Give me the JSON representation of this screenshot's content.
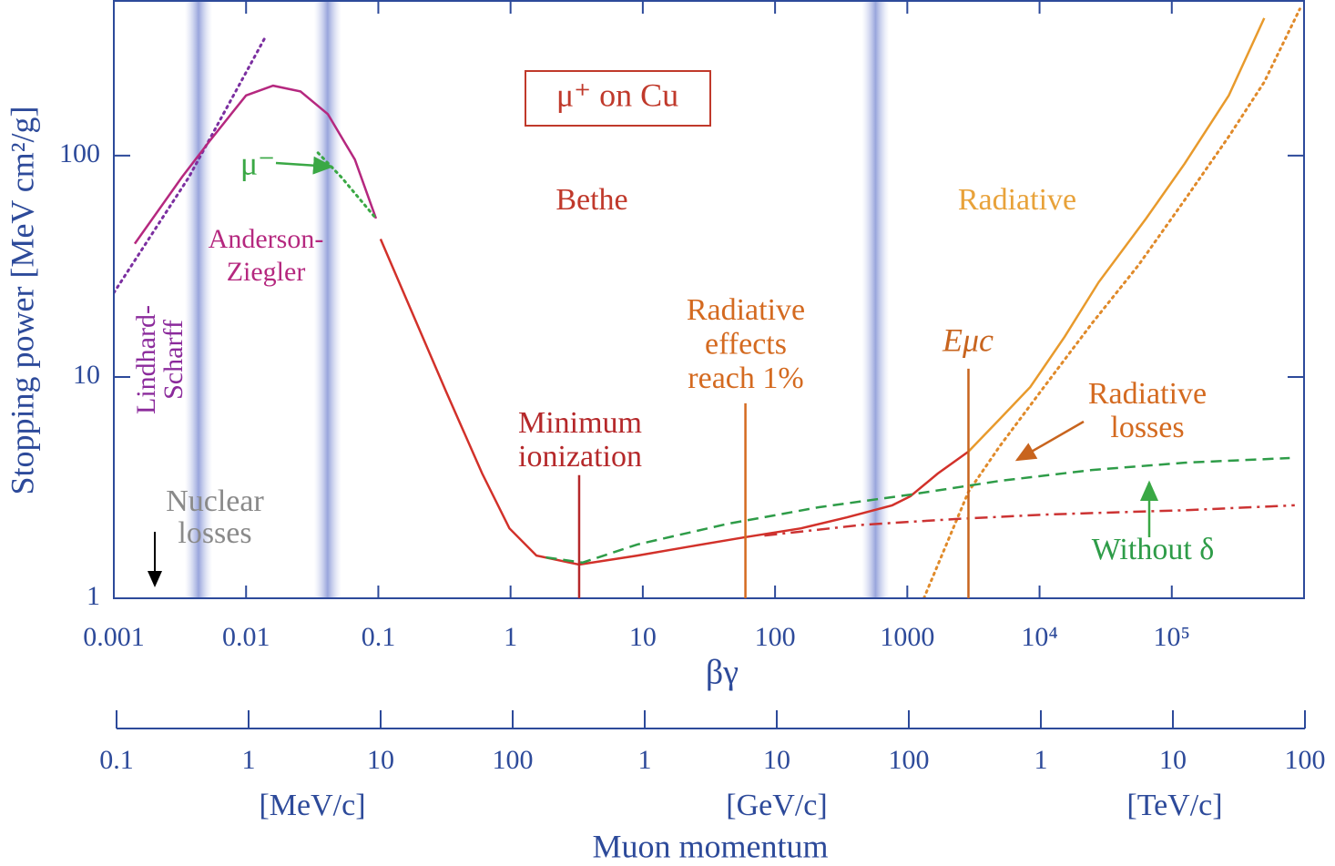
{
  "chart_data": {
    "type": "line",
    "title": "μ⁺ on Cu",
    "xlabel": "βγ",
    "ylabel": "Stopping power [MeV cm²/g]",
    "xscale": "log",
    "yscale": "log",
    "xlim": [
      0.001,
      1000000
    ],
    "ylim": [
      1,
      500
    ],
    "xticks": [
      0.001,
      0.01,
      0.1,
      1,
      10,
      100,
      1000,
      {
        "value": 10000,
        "label": "10⁴"
      },
      {
        "value": 100000,
        "label": "10⁵"
      }
    ],
    "yticks": [
      1,
      10,
      100
    ],
    "series": [
      {
        "color": "#7b2fa0",
        "style": "dotted",
        "x": [
          0.001,
          0.0037,
          0.0137
        ],
        "values": [
          24,
          80,
          336
        ]
      },
      {
        "color": "#b5287f",
        "style": "solid",
        "x": [
          0.00144,
          0.00328,
          0.00528,
          0.01,
          0.016,
          0.0258,
          0.0415,
          0.0665,
          0.096
        ],
        "values": [
          40,
          80,
          116,
          187,
          207,
          195,
          154,
          96,
          52
        ]
      },
      {
        "color": "#3aa845",
        "style": "dotted",
        "x": [
          0.035,
          0.0524,
          0.096
        ],
        "values": [
          103,
          80,
          52
        ]
      },
      {
        "color": "#d2312a",
        "style": "solid",
        "x": [
          0.104,
          0.171,
          0.325,
          0.61,
          0.98,
          1.57,
          3.3,
          9.1,
          23.4,
          60,
          157,
          348,
          770,
          1055,
          1700,
          2900
        ],
        "values": [
          42,
          21,
          8.6,
          3.66,
          2.07,
          1.56,
          1.42,
          1.56,
          1.72,
          1.89,
          2.07,
          2.32,
          2.63,
          2.89,
          3.66,
          4.6
        ]
      },
      {
        "color": "#e89a2c",
        "style": "solid",
        "x": [
          2900,
          5000,
          8500,
          15500,
          28000,
          64000,
          125000,
          270000,
          500000
        ],
        "values": [
          4.6,
          6.45,
          9,
          15.2,
          26.8,
          52,
          92,
          187,
          418
        ]
      },
      {
        "color": "#e08a2a",
        "style": "dotted",
        "x": [
          1334,
          2900,
          5000,
          11400,
          25000,
          56000,
          125000,
          270000,
          500000,
          930000
        ],
        "values": [
          1,
          3.03,
          4.86,
          9.4,
          17.5,
          32,
          63,
          122,
          215,
          460
        ]
      },
      {
        "color": "#2e9c48",
        "style": "dashed",
        "x": [
          1.85,
          3.5,
          9.1,
          44,
          215,
          1050,
          5000,
          25000,
          125000,
          780000
        ],
        "values": [
          1.53,
          1.45,
          1.75,
          2.17,
          2.58,
          2.94,
          3.39,
          3.8,
          4.1,
          4.3
        ]
      },
      {
        "color": "#cc3333",
        "style": "dashdot",
        "x": [
          83,
          470,
          2300,
          11400,
          125000,
          850000
        ],
        "values": [
          1.92,
          2.15,
          2.28,
          2.39,
          2.5,
          2.63
        ]
      }
    ],
    "markers": [
      {
        "color": "#b5282a",
        "x": 3.3,
        "top": 3.6
      },
      {
        "color": "#d46a20",
        "x": 59.7,
        "top": 7.6
      },
      {
        "color": "#c8641e",
        "x": 2900,
        "top": 10.9
      }
    ],
    "bands": [
      0.00437,
      0.0414,
      575
    ],
    "annotations": [
      {
        "color": "#8b2a9b",
        "lines": [
          "Lindhard-",
          "Scharff"
        ]
      },
      {
        "color": "#b5287f",
        "lines": [
          "Anderson-",
          "Ziegler"
        ]
      },
      {
        "color": "#3aa845",
        "lines": [
          "μ⁻"
        ]
      },
      {
        "color": "#c0392b",
        "lines": [
          "Bethe"
        ]
      },
      {
        "color": "#e8a23a",
        "lines": [
          "Radiative"
        ]
      },
      {
        "color": "#d46a20",
        "lines": [
          "Radiative",
          "effects",
          "reach 1%"
        ]
      },
      {
        "color": "#b5282a",
        "lines": [
          "Minimum",
          "ionization"
        ]
      },
      {
        "color": "#c8641e",
        "lines": [
          "Eμc"
        ]
      },
      {
        "color": "#d46a20",
        "lines": [
          "Radiative",
          "losses"
        ]
      },
      {
        "color": "#2e9c48",
        "lines": [
          "Without   δ"
        ]
      },
      {
        "color": "#8a8a8a",
        "lines": [
          "Nuclear",
          "losses"
        ]
      }
    ],
    "axis2": {
      "title": "Muon momentum",
      "xlim": [
        0.1,
        100000000
      ],
      "xticks": [
        0.1,
        1,
        10,
        100,
        {
          "value": 1000,
          "label": "1"
        },
        {
          "value": 10000,
          "label": "10"
        },
        {
          "value": 100000,
          "label": "100"
        },
        {
          "value": 1000000,
          "label": "1"
        },
        {
          "value": 10000000,
          "label": "10"
        },
        {
          "value": 100000000,
          "label": "100"
        }
      ],
      "units": [
        "[MeV/c]",
        "[GeV/c]",
        "[TeV/c]"
      ]
    }
  }
}
